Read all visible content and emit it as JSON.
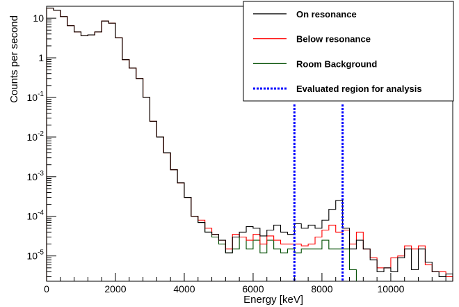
{
  "chart_data": {
    "type": "line",
    "style": "step-histogram",
    "xlabel": "Energy [keV]",
    "ylabel": "Counts per second",
    "xlim": [
      0,
      11800
    ],
    "ylim": [
      2.3e-06,
      20
    ],
    "yscale": "log",
    "bin_width": 200,
    "x_ticks": [
      0,
      2000,
      4000,
      6000,
      8000,
      10000
    ],
    "x_tick_labels": [
      "0",
      "2000",
      "4000",
      "6000",
      "8000",
      "10000"
    ],
    "y_ticks": [
      1e-05,
      0.0001,
      0.001,
      0.01,
      0.1,
      1,
      10
    ],
    "y_tick_labels": [
      {
        "base": "10",
        "exp": "-5"
      },
      {
        "base": "10",
        "exp": "-4"
      },
      {
        "base": "10",
        "exp": "-3"
      },
      {
        "base": "10",
        "exp": "-2"
      },
      {
        "base": "10",
        "exp": "-1"
      },
      {
        "base": "1",
        "exp": ""
      },
      {
        "base": "10",
        "exp": ""
      }
    ],
    "legend_position": "top-right",
    "series": [
      {
        "name": "On resonance",
        "color": "#000000",
        "values": [
          18,
          16,
          11,
          6.5,
          4.5,
          3.6,
          3.8,
          4.5,
          8.5,
          7.5,
          3.2,
          0.9,
          0.55,
          0.3,
          0.1,
          0.025,
          0.01,
          0.004,
          0.0015,
          0.0007,
          0.0003,
          0.0001,
          7e-05,
          4e-05,
          3.5e-05,
          2.5e-05,
          1.2e-05,
          3e-05,
          4e-05,
          5.5e-05,
          5e-05,
          3.2e-05,
          4.5e-05,
          6e-05,
          4e-05,
          3.5e-05,
          6.5e-05,
          5e-05,
          6e-05,
          5e-05,
          8e-05,
          0.00015,
          0.00025,
          5e-05,
          1.5e-05,
          2.5e-05,
          1.5e-05,
          8e-06,
          4e-06,
          5e-06,
          4e-06,
          9e-06,
          1.5e-05,
          4.5e-06,
          1.5e-05,
          7e-06,
          4e-06,
          3e-06,
          3.5e-06
        ]
      },
      {
        "name": "Below resonance",
        "color": "#ff0000",
        "values": [
          18,
          16,
          11,
          6.5,
          4.5,
          3.6,
          3.8,
          4.5,
          8.5,
          7.5,
          3.2,
          0.9,
          0.55,
          0.3,
          0.1,
          0.025,
          0.01,
          0.004,
          0.0015,
          0.0007,
          0.0003,
          0.0001,
          8e-05,
          5e-05,
          3.5e-05,
          2.5e-05,
          1.5e-05,
          3.5e-05,
          3e-05,
          2.5e-05,
          3.5e-05,
          2e-05,
          3.2e-05,
          2.5e-05,
          2e-05,
          2e-05,
          2e-05,
          1.8e-05,
          2e-05,
          3e-05,
          4.5e-05,
          6e-05,
          4e-05,
          4.5e-05,
          2e-05,
          4e-05,
          1.5e-05,
          9e-06,
          5e-06,
          5e-06,
          9e-06,
          1e-05,
          1.8e-05,
          1.5e-05,
          1.8e-05,
          6e-06,
          4e-06,
          4e-06,
          3e-06
        ]
      },
      {
        "name": "Room Background",
        "color": "#004d00",
        "values": [
          18,
          16,
          11,
          6.5,
          4.5,
          3.6,
          3.8,
          4.5,
          8.5,
          7.5,
          3.2,
          0.9,
          0.55,
          0.3,
          0.1,
          0.025,
          0.01,
          0.004,
          0.0015,
          0.0007,
          0.0003,
          0.0001,
          7e-05,
          4e-05,
          3e-05,
          2e-05,
          1.2e-05,
          1.5e-05,
          3e-05,
          1.5e-05,
          2.5e-05,
          1.2e-05,
          2.5e-05,
          1.5e-05,
          1.2e-05,
          1.5e-05,
          1.2e-05,
          1.5e-05,
          1.5e-05,
          1.5e-05,
          2.5e-05,
          1.5e-05,
          1.5e-05,
          1.5e-05,
          4.5e-06,
          null,
          null,
          null,
          null,
          null,
          null,
          null,
          null,
          null,
          null,
          null,
          null,
          null,
          null
        ]
      }
    ],
    "analysis_region": {
      "name": "Evaluated region for analysis",
      "color": "#0000ff",
      "x": [
        7200,
        8600
      ]
    }
  }
}
